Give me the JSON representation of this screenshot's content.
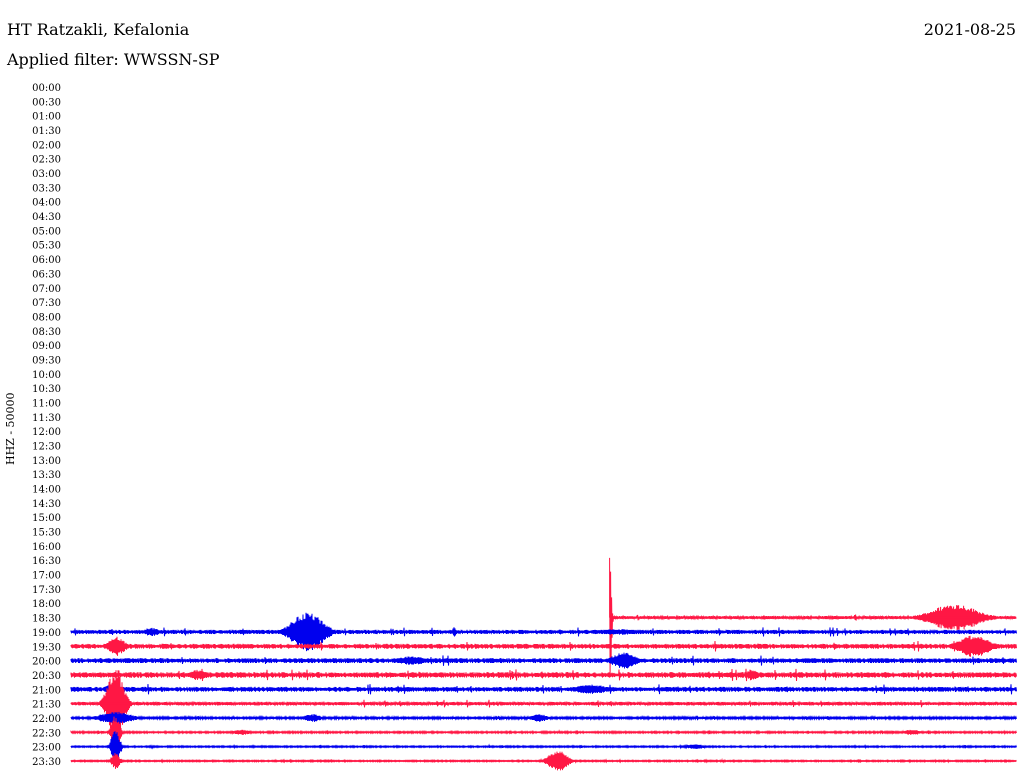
{
  "header": {
    "station": "HT Ratzakli, Kefalonia",
    "date": "2021-08-25",
    "filter": "Applied filter: WWSSN-SP",
    "channel_label": "HHZ - 50000"
  },
  "colors": {
    "trace_a": "#0000ee",
    "trace_b": "#ff1744"
  },
  "chart_data": {
    "type": "line",
    "title": "HT Ratzakli, Kefalonia",
    "ylabel": "HHZ - 50000",
    "row_labels": [
      "00:00",
      "00:30",
      "01:00",
      "01:30",
      "02:00",
      "02:30",
      "03:00",
      "03:30",
      "04:00",
      "04:30",
      "05:00",
      "05:30",
      "06:00",
      "06:30",
      "07:00",
      "07:30",
      "08:00",
      "08:30",
      "09:00",
      "09:30",
      "10:00",
      "10:30",
      "11:00",
      "11:30",
      "12:00",
      "12:30",
      "13:00",
      "13:30",
      "14:00",
      "14:30",
      "15:00",
      "15:30",
      "16:00",
      "16:30",
      "17:00",
      "17:30",
      "18:00",
      "18:30",
      "19:00",
      "19:30",
      "20:00",
      "20:30",
      "21:00",
      "21:30",
      "22:00",
      "22:30",
      "23:00",
      "23:30"
    ],
    "traces": [
      {
        "row": "18:30",
        "start_fraction": 0.57,
        "noise": 0.22,
        "events": [
          {
            "at": 0.57,
            "amp": 10,
            "width": 0.002
          },
          {
            "at": 0.935,
            "amp": 2.0,
            "width": 0.03
          }
        ]
      },
      {
        "row": "19:00",
        "start_fraction": 0.0,
        "noise": 0.3,
        "events": [
          {
            "at": 0.085,
            "amp": 0.6,
            "width": 0.01
          },
          {
            "at": 0.25,
            "amp": 2.9,
            "width": 0.02
          },
          {
            "at": 0.405,
            "amp": 0.8,
            "width": 0.002
          },
          {
            "at": 0.58,
            "amp": 0.4,
            "width": 0.03
          }
        ]
      },
      {
        "row": "19:30",
        "start_fraction": 0.0,
        "noise": 0.35,
        "events": [
          {
            "at": 0.048,
            "amp": 1.4,
            "width": 0.01
          },
          {
            "at": 0.955,
            "amp": 1.6,
            "width": 0.02
          }
        ]
      },
      {
        "row": "20:00",
        "start_fraction": 0.0,
        "noise": 0.35,
        "events": [
          {
            "at": 0.36,
            "amp": 0.6,
            "width": 0.02
          },
          {
            "at": 0.585,
            "amp": 1.2,
            "width": 0.015
          }
        ]
      },
      {
        "row": "20:30",
        "start_fraction": 0.0,
        "noise": 0.4,
        "events": [
          {
            "at": 0.135,
            "amp": 0.8,
            "width": 0.01
          },
          {
            "at": 0.72,
            "amp": 0.8,
            "width": 0.008
          }
        ]
      },
      {
        "row": "21:00",
        "start_fraction": 0.0,
        "noise": 0.35,
        "events": [
          {
            "at": 0.045,
            "amp": 0.9,
            "width": 0.01
          },
          {
            "at": 0.55,
            "amp": 0.7,
            "width": 0.02
          }
        ]
      },
      {
        "row": "21:30",
        "start_fraction": 0.0,
        "noise": 0.25,
        "events": [
          {
            "at": 0.047,
            "amp": 5.5,
            "width": 0.01
          }
        ]
      },
      {
        "row": "22:00",
        "start_fraction": 0.0,
        "noise": 0.15,
        "events": [
          {
            "at": 0.047,
            "amp": 0.9,
            "width": 0.02
          },
          {
            "at": 0.255,
            "amp": 0.6,
            "width": 0.01
          },
          {
            "at": 0.495,
            "amp": 0.6,
            "width": 0.01
          }
        ]
      },
      {
        "row": "22:30",
        "start_fraction": 0.0,
        "noise": 0.12,
        "events": [
          {
            "at": 0.047,
            "amp": 2.5,
            "width": 0.005
          },
          {
            "at": 0.18,
            "amp": 0.4,
            "width": 0.01
          },
          {
            "at": 0.89,
            "amp": 0.4,
            "width": 0.01
          }
        ]
      },
      {
        "row": "23:00",
        "start_fraction": 0.0,
        "noise": 0.1,
        "events": [
          {
            "at": 0.047,
            "amp": 2.8,
            "width": 0.005
          },
          {
            "at": 0.66,
            "amp": 0.4,
            "width": 0.01
          }
        ]
      },
      {
        "row": "23:30",
        "start_fraction": 0.0,
        "noise": 0.1,
        "events": [
          {
            "at": 0.047,
            "amp": 1.2,
            "width": 0.005
          },
          {
            "at": 0.515,
            "amp": 1.6,
            "width": 0.012
          }
        ]
      }
    ]
  }
}
